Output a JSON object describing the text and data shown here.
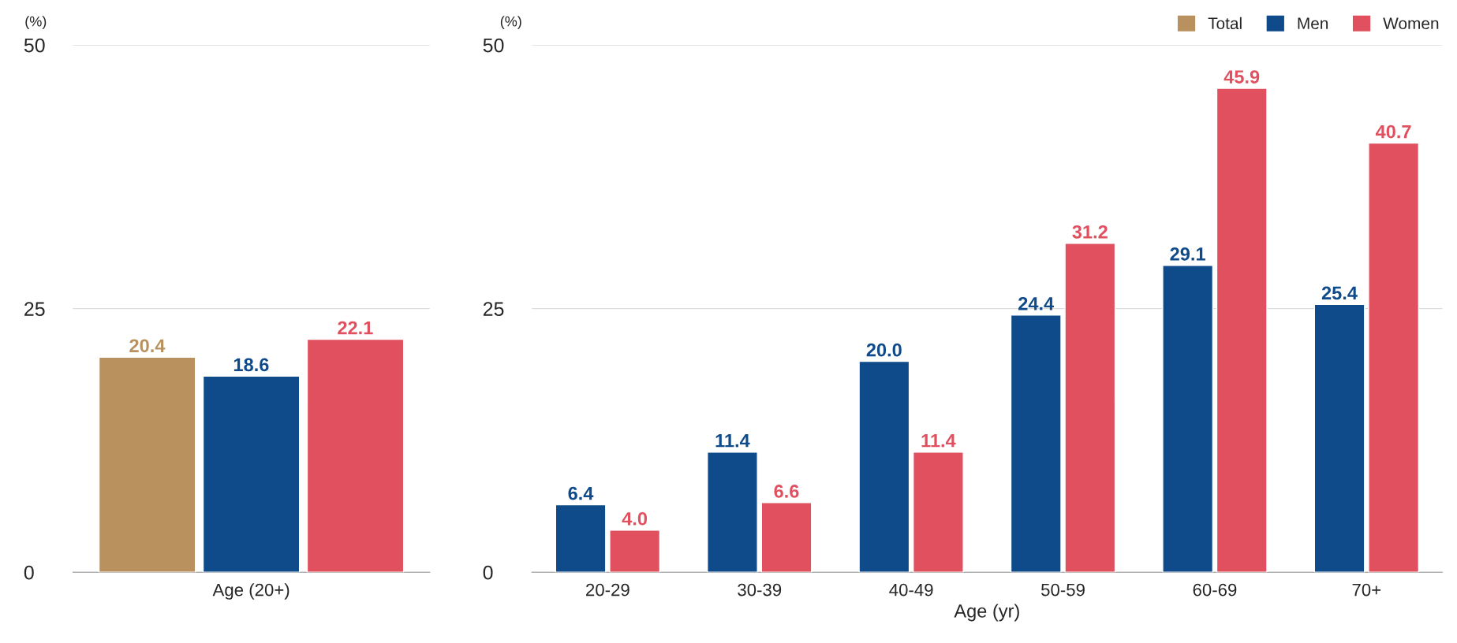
{
  "chart_data": [
    {
      "type": "bar",
      "categories": [
        "Age (20+)"
      ],
      "ylabel": "(%)",
      "ylim": [
        0,
        50
      ],
      "yticks": [
        0,
        25,
        50
      ],
      "grid": "y",
      "legend": "top right",
      "series": [
        {
          "name": "Total",
          "color": "#b8915e",
          "values": [
            20.4
          ],
          "value_labels": [
            "20.4"
          ]
        },
        {
          "name": "Men",
          "color": "#0f4a8a",
          "values": [
            18.6
          ],
          "value_labels": [
            "18.6"
          ]
        },
        {
          "name": "Women",
          "color": "#e0505e",
          "values": [
            22.1
          ],
          "value_labels": [
            "22.1"
          ]
        }
      ]
    },
    {
      "type": "bar",
      "categories": [
        "20-29",
        "30-39",
        "40-49",
        "50-59",
        "60-69",
        "70+"
      ],
      "xlabel": "Age (yr)",
      "ylabel": "(%)",
      "ylim": [
        0,
        50
      ],
      "yticks": [
        0,
        25,
        50
      ],
      "grid": "y",
      "series": [
        {
          "color": "#0f4a8a",
          "values": [
            6.4,
            11.4,
            20.0,
            24.4,
            29.1,
            25.4
          ],
          "value_labels": [
            "6.4",
            "11.4",
            "20.0",
            "24.4",
            "29.1",
            "25.4"
          ]
        },
        {
          "color": "#e0505e",
          "values": [
            4.0,
            6.6,
            11.4,
            31.2,
            45.9,
            40.7
          ],
          "value_labels": [
            "4.0",
            "6.6",
            "11.4",
            "31.2",
            "45.9",
            "40.7"
          ]
        }
      ]
    }
  ]
}
